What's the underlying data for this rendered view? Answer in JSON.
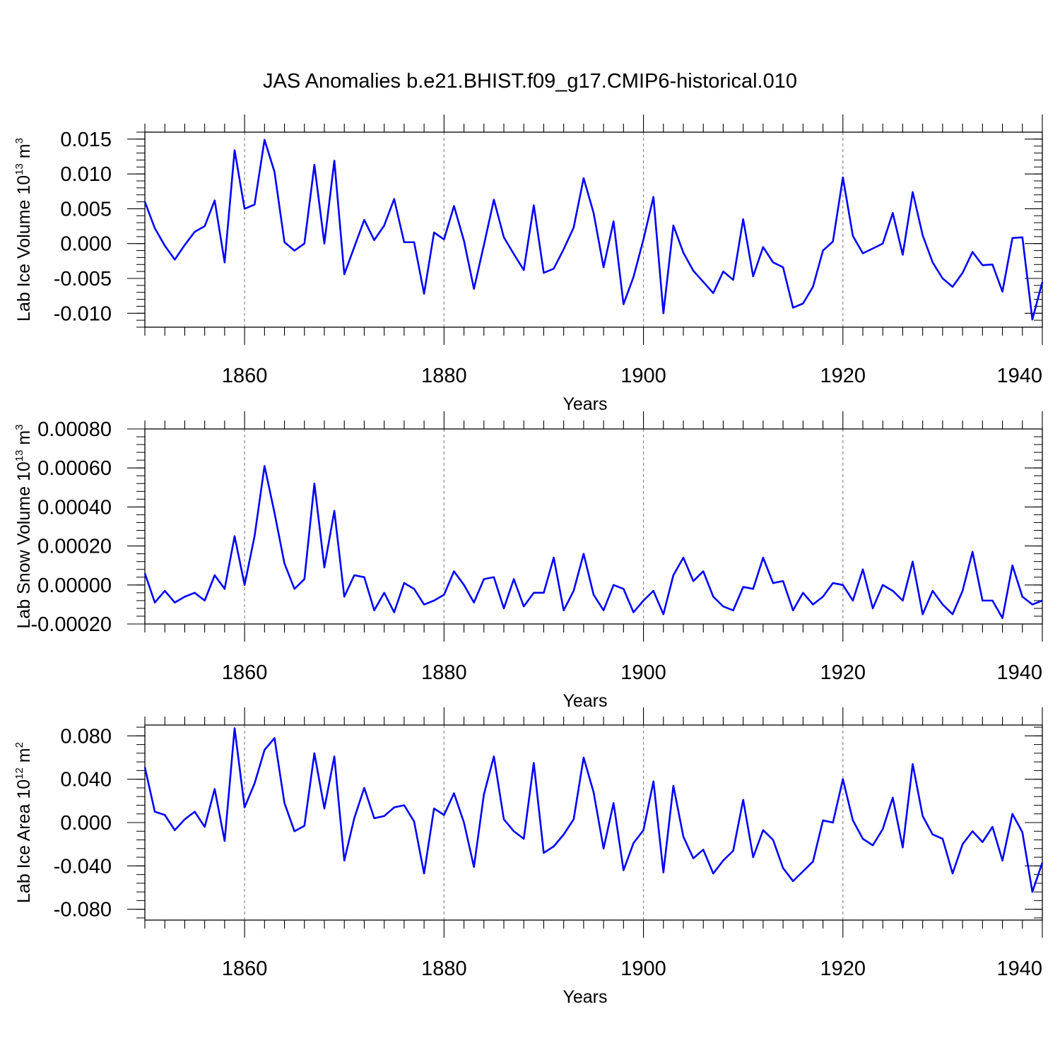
{
  "chart_data": {
    "type": "line",
    "title": "JAS Anomalies b.e21.BHIST.f09_g17.CMIP6-historical.010",
    "line_color": "#0000ff",
    "xlim": [
      1850,
      1940
    ],
    "x_ticks": [
      1860,
      1880,
      1900,
      1920,
      1940
    ],
    "x": [
      1850,
      1851,
      1852,
      1853,
      1854,
      1855,
      1856,
      1857,
      1858,
      1859,
      1860,
      1861,
      1862,
      1863,
      1864,
      1865,
      1866,
      1867,
      1868,
      1869,
      1870,
      1871,
      1872,
      1873,
      1874,
      1875,
      1876,
      1877,
      1878,
      1879,
      1880,
      1881,
      1882,
      1883,
      1884,
      1885,
      1886,
      1887,
      1888,
      1889,
      1890,
      1891,
      1892,
      1893,
      1894,
      1895,
      1896,
      1897,
      1898,
      1899,
      1900,
      1901,
      1902,
      1903,
      1904,
      1905,
      1906,
      1907,
      1908,
      1909,
      1910,
      1911,
      1912,
      1913,
      1914,
      1915,
      1916,
      1917,
      1918,
      1919,
      1920,
      1921,
      1922,
      1923,
      1924,
      1925,
      1926,
      1927,
      1928,
      1929,
      1930,
      1931,
      1932,
      1933,
      1934,
      1935,
      1936,
      1937,
      1938,
      1939,
      1940
    ],
    "panels": [
      {
        "name": "lab-ice-volume",
        "ylabel": "Lab Ice Volume 10",
        "ylabel_exp": "13",
        "ylabel_unit": "m",
        "ylabel_unit_exp": "3",
        "xlabel": "Years",
        "ylim": [
          -0.012,
          0.016
        ],
        "y_ticks": [
          0.015,
          0.01,
          0.005,
          0.0,
          -0.005,
          -0.01
        ],
        "y_tick_labels": [
          "0.015",
          "0.010",
          "0.005",
          "0.000",
          "-0.005",
          "-0.010"
        ],
        "values": [
          0.006,
          0.0022,
          -0.0003,
          -0.0023,
          -0.0002,
          0.0017,
          0.0025,
          0.0062,
          -0.0027,
          0.0134,
          0.005,
          0.0056,
          0.0149,
          0.0103,
          0.0002,
          -0.001,
          0.0,
          0.0113,
          0.0,
          0.0119,
          -0.0044,
          -0.0005,
          0.0034,
          0.0005,
          0.0026,
          0.0064,
          0.0002,
          0.0002,
          -0.0072,
          0.0016,
          0.0006,
          0.0054,
          0.0004,
          -0.0065,
          -0.0002,
          0.0063,
          0.0009,
          -0.0015,
          -0.0038,
          0.0055,
          -0.0042,
          -0.0036,
          -0.0008,
          0.0023,
          0.0094,
          0.0044,
          -0.0034,
          0.0032,
          -0.0087,
          -0.0048,
          0.0006,
          0.0067,
          -0.01,
          0.0026,
          -0.0013,
          -0.0039,
          -0.0055,
          -0.0071,
          -0.004,
          -0.0052,
          0.0035,
          -0.0047,
          -0.0005,
          -0.0027,
          -0.0034,
          -0.0092,
          -0.0086,
          -0.0062,
          -0.001,
          0.0003,
          0.0095,
          0.0011,
          -0.0014,
          -0.0007,
          0.0,
          0.0044,
          -0.0016,
          0.0074,
          0.0012,
          -0.0027,
          -0.005,
          -0.0062,
          -0.0042,
          -0.0012,
          -0.0031,
          -0.003,
          -0.0069,
          0.0008,
          0.0009,
          -0.0109,
          -0.0055
        ]
      },
      {
        "name": "lab-snow-volume",
        "ylabel": "Lab Snow Volume 10",
        "ylabel_exp": "13",
        "ylabel_unit": "m",
        "ylabel_unit_exp": "3",
        "xlabel": "Years",
        "ylim": [
          -0.0002,
          0.0008
        ],
        "y_ticks": [
          0.0008,
          0.0006,
          0.0004,
          0.0002,
          0.0,
          -0.0002
        ],
        "y_tick_labels": [
          "0.00080",
          "0.00060",
          "0.00040",
          "0.00020",
          "0.00000",
          "-0.00020"
        ],
        "values": [
          6e-05,
          -9e-05,
          -3e-05,
          -9e-05,
          -6e-05,
          -4e-05,
          -8e-05,
          5e-05,
          -2e-05,
          0.00025,
          0.0,
          0.00025,
          0.00061,
          0.00037,
          0.00011,
          -2e-05,
          3e-05,
          0.00052,
          9e-05,
          0.00038,
          -6e-05,
          5e-05,
          4e-05,
          -0.00013,
          -4e-05,
          -0.00014,
          1e-05,
          -2e-05,
          -0.0001,
          -8e-05,
          -5e-05,
          7e-05,
          0.0,
          -9e-05,
          3e-05,
          4e-05,
          -0.00012,
          3e-05,
          -0.00011,
          -4e-05,
          -4e-05,
          0.00014,
          -0.00013,
          -3e-05,
          0.00016,
          -5e-05,
          -0.00013,
          0.0,
          -2e-05,
          -0.00014,
          -8e-05,
          -3e-05,
          -0.00015,
          5e-05,
          0.00014,
          2e-05,
          7e-05,
          -6e-05,
          -0.00011,
          -0.00013,
          -1e-05,
          -2e-05,
          0.00014,
          1e-05,
          2e-05,
          -0.00013,
          -4e-05,
          -0.0001,
          -6e-05,
          1e-05,
          0.0,
          -8e-05,
          8e-05,
          -0.00012,
          0.0,
          -3e-05,
          -8e-05,
          0.00012,
          -0.00015,
          -3e-05,
          -0.0001,
          -0.00015,
          -3e-05,
          0.00017,
          -8e-05,
          -8e-05,
          -0.00017,
          0.0001,
          -6e-05,
          -0.0001,
          -8e-05
        ]
      },
      {
        "name": "lab-ice-area",
        "ylabel": "Lab Ice Area 10",
        "ylabel_exp": "12",
        "ylabel_unit": "m",
        "ylabel_unit_exp": "2",
        "xlabel": "Years",
        "ylim": [
          -0.09,
          0.09
        ],
        "y_ticks": [
          0.08,
          0.04,
          0.0,
          -0.04,
          -0.08
        ],
        "y_tick_labels": [
          "0.080",
          "0.040",
          "0.000",
          "-0.040",
          "-0.080"
        ],
        "values": [
          0.051,
          0.01,
          0.007,
          -0.007,
          0.003,
          0.01,
          -0.004,
          0.031,
          -0.017,
          0.087,
          0.014,
          0.036,
          0.067,
          0.078,
          0.018,
          -0.008,
          -0.003,
          0.064,
          0.013,
          0.061,
          -0.035,
          0.004,
          0.032,
          0.004,
          0.006,
          0.014,
          0.016,
          0.001,
          -0.047,
          0.013,
          0.007,
          0.027,
          0.0,
          -0.041,
          0.026,
          0.061,
          0.003,
          -0.008,
          -0.015,
          0.055,
          -0.028,
          -0.022,
          -0.011,
          0.003,
          0.06,
          0.028,
          -0.024,
          0.018,
          -0.044,
          -0.019,
          -0.007,
          0.038,
          -0.046,
          0.034,
          -0.013,
          -0.033,
          -0.025,
          -0.047,
          -0.035,
          -0.026,
          0.021,
          -0.032,
          -0.007,
          -0.016,
          -0.042,
          -0.054,
          -0.045,
          -0.036,
          0.002,
          0.0,
          0.04,
          0.002,
          -0.015,
          -0.021,
          -0.006,
          0.023,
          -0.023,
          0.054,
          0.006,
          -0.011,
          -0.015,
          -0.047,
          -0.02,
          -0.008,
          -0.018,
          -0.004,
          -0.035,
          0.008,
          -0.009,
          -0.064,
          -0.037
        ]
      }
    ]
  }
}
